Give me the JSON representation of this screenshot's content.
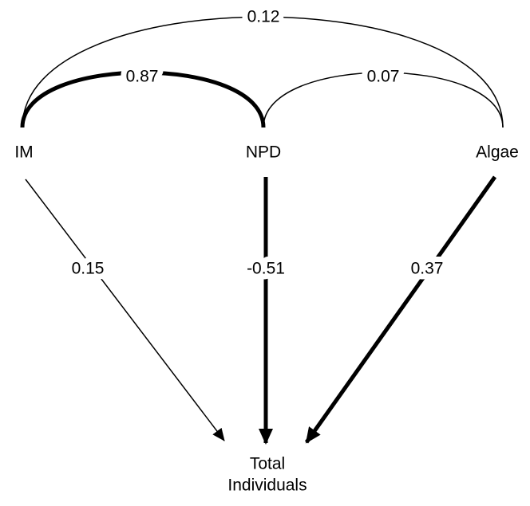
{
  "nodes": [
    {
      "label": "IM"
    },
    {
      "label": "NPD"
    },
    {
      "label": "Algae"
    },
    {
      "label": "Total Individuals",
      "lines": [
        "Total",
        "Individuals"
      ]
    }
  ],
  "edges": [
    {
      "from": "IM",
      "to": "Algae",
      "label": "0.12"
    },
    {
      "from": "IM",
      "to": "NPD",
      "label": "0.87"
    },
    {
      "from": "NPD",
      "to": "Algae",
      "label": "0.07"
    },
    {
      "from": "IM",
      "to": "Total Individuals",
      "label": "0.15"
    },
    {
      "from": "NPD",
      "to": "Total Individuals",
      "label": "-0.51"
    },
    {
      "from": "Algae",
      "to": "Total Individuals",
      "label": "0.37"
    }
  ]
}
